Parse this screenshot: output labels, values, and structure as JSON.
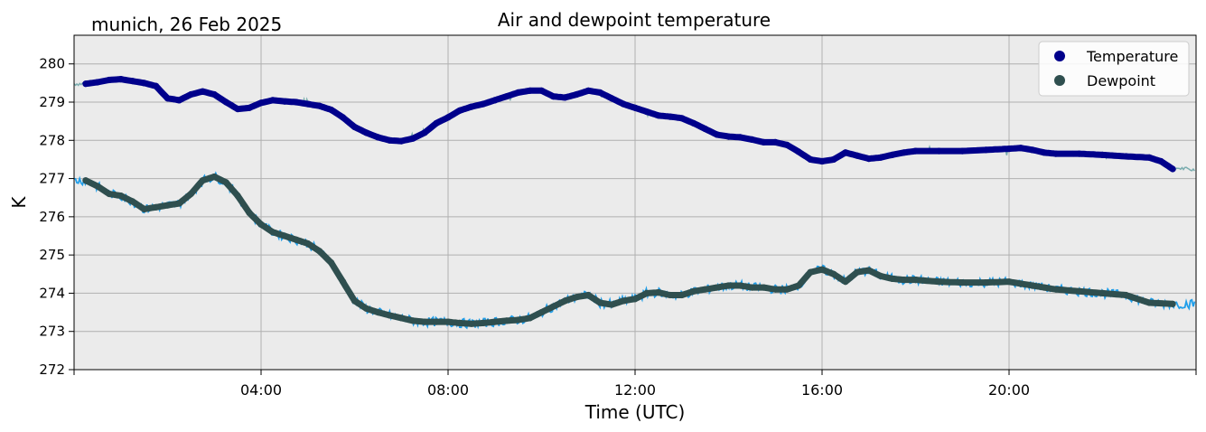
{
  "location_date": "munich, 26 Feb 2025",
  "chart_data": {
    "type": "line",
    "title": "Air and dewpoint temperature",
    "xlabel": "Time (UTC)",
    "ylabel": "K",
    "xlim_hours": [
      0,
      24
    ],
    "ylim": [
      272,
      280.75
    ],
    "xticks": [
      {
        "value": 4,
        "label": "04:00"
      },
      {
        "value": 8,
        "label": "08:00"
      },
      {
        "value": 12,
        "label": "12:00"
      },
      {
        "value": 16,
        "label": "16:00"
      },
      {
        "value": 20,
        "label": "20:00"
      }
    ],
    "yticks": [
      272,
      273,
      274,
      275,
      276,
      277,
      278,
      279,
      280
    ],
    "grid": true,
    "background": "#ebebeb",
    "legend": {
      "location": "top-right"
    },
    "series": [
      {
        "name": "Temperature",
        "color": "#00008b",
        "raw_color": "#5f9ea0",
        "x": [
          0.25,
          0.5,
          0.75,
          1.0,
          1.25,
          1.5,
          1.75,
          2.0,
          2.25,
          2.5,
          2.75,
          3.0,
          3.25,
          3.5,
          3.75,
          4.0,
          4.25,
          4.5,
          4.75,
          5.0,
          5.25,
          5.5,
          5.75,
          6.0,
          6.25,
          6.5,
          6.75,
          7.0,
          7.25,
          7.5,
          7.75,
          8.0,
          8.25,
          8.5,
          8.75,
          9.0,
          9.25,
          9.5,
          9.75,
          10.0,
          10.25,
          10.5,
          10.75,
          11.0,
          11.25,
          11.5,
          11.75,
          12.0,
          12.25,
          12.5,
          12.75,
          13.0,
          13.25,
          13.5,
          13.75,
          14.0,
          14.25,
          14.5,
          14.75,
          15.0,
          15.25,
          15.5,
          15.75,
          16.0,
          16.25,
          16.5,
          16.75,
          17.0,
          17.25,
          17.5,
          17.75,
          18.0,
          18.5,
          19.0,
          19.5,
          20.0,
          20.25,
          20.5,
          20.75,
          21.0,
          21.5,
          22.0,
          22.5,
          23.0,
          23.25,
          23.5
        ],
        "y": [
          279.48,
          279.52,
          279.58,
          279.6,
          279.55,
          279.5,
          279.42,
          279.1,
          279.05,
          279.2,
          279.28,
          279.2,
          279.0,
          278.82,
          278.85,
          278.98,
          279.05,
          279.02,
          279.0,
          278.95,
          278.9,
          278.8,
          278.6,
          278.35,
          278.2,
          278.08,
          278.0,
          277.98,
          278.05,
          278.2,
          278.45,
          278.6,
          278.78,
          278.88,
          278.95,
          279.05,
          279.15,
          279.25,
          279.3,
          279.3,
          279.15,
          279.12,
          279.2,
          279.3,
          279.25,
          279.1,
          278.95,
          278.85,
          278.75,
          278.65,
          278.62,
          278.58,
          278.45,
          278.3,
          278.15,
          278.1,
          278.08,
          278.02,
          277.95,
          277.95,
          277.88,
          277.7,
          277.5,
          277.45,
          277.5,
          277.68,
          277.6,
          277.52,
          277.55,
          277.62,
          277.68,
          277.72,
          277.72,
          277.72,
          277.75,
          277.78,
          277.8,
          277.75,
          277.68,
          277.65,
          277.65,
          277.62,
          277.58,
          277.55,
          277.45,
          277.25
        ]
      },
      {
        "name": "Dewpoint",
        "color": "#2f4f4f",
        "raw_color": "#1f9eea",
        "x": [
          0.25,
          0.5,
          0.75,
          1.0,
          1.25,
          1.5,
          1.75,
          2.0,
          2.25,
          2.5,
          2.75,
          3.0,
          3.25,
          3.5,
          3.75,
          4.0,
          4.25,
          4.5,
          4.75,
          5.0,
          5.25,
          5.5,
          5.75,
          6.0,
          6.25,
          6.5,
          6.75,
          7.0,
          7.25,
          7.5,
          7.75,
          8.0,
          8.25,
          8.5,
          8.75,
          9.0,
          9.25,
          9.5,
          9.75,
          10.0,
          10.25,
          10.5,
          10.75,
          11.0,
          11.25,
          11.5,
          11.75,
          12.0,
          12.25,
          12.5,
          12.75,
          13.0,
          13.25,
          13.5,
          13.75,
          14.0,
          14.25,
          14.5,
          14.75,
          15.0,
          15.25,
          15.5,
          15.75,
          16.0,
          16.25,
          16.5,
          16.75,
          17.0,
          17.25,
          17.5,
          17.75,
          18.0,
          18.5,
          19.0,
          19.5,
          20.0,
          20.25,
          20.5,
          20.75,
          21.0,
          21.5,
          22.0,
          22.5,
          23.0,
          23.5
        ],
        "y": [
          276.95,
          276.8,
          276.6,
          276.55,
          276.4,
          276.2,
          276.25,
          276.3,
          276.35,
          276.6,
          276.95,
          277.05,
          276.9,
          276.55,
          276.1,
          275.8,
          275.6,
          275.5,
          275.4,
          275.3,
          275.1,
          274.8,
          274.3,
          273.8,
          273.6,
          273.5,
          273.42,
          273.35,
          273.28,
          273.25,
          273.25,
          273.25,
          273.22,
          273.2,
          273.22,
          273.25,
          273.28,
          273.3,
          273.35,
          273.5,
          273.65,
          273.8,
          273.9,
          273.95,
          273.75,
          273.7,
          273.8,
          273.85,
          274.0,
          274.02,
          273.95,
          273.95,
          274.05,
          274.1,
          274.15,
          274.2,
          274.2,
          274.15,
          274.15,
          274.1,
          274.1,
          274.2,
          274.55,
          274.62,
          274.5,
          274.3,
          274.55,
          274.6,
          274.45,
          274.38,
          274.35,
          274.35,
          274.3,
          274.28,
          274.28,
          274.3,
          274.25,
          274.2,
          274.15,
          274.1,
          274.05,
          274.0,
          273.95,
          273.75,
          273.72
        ]
      }
    ]
  }
}
